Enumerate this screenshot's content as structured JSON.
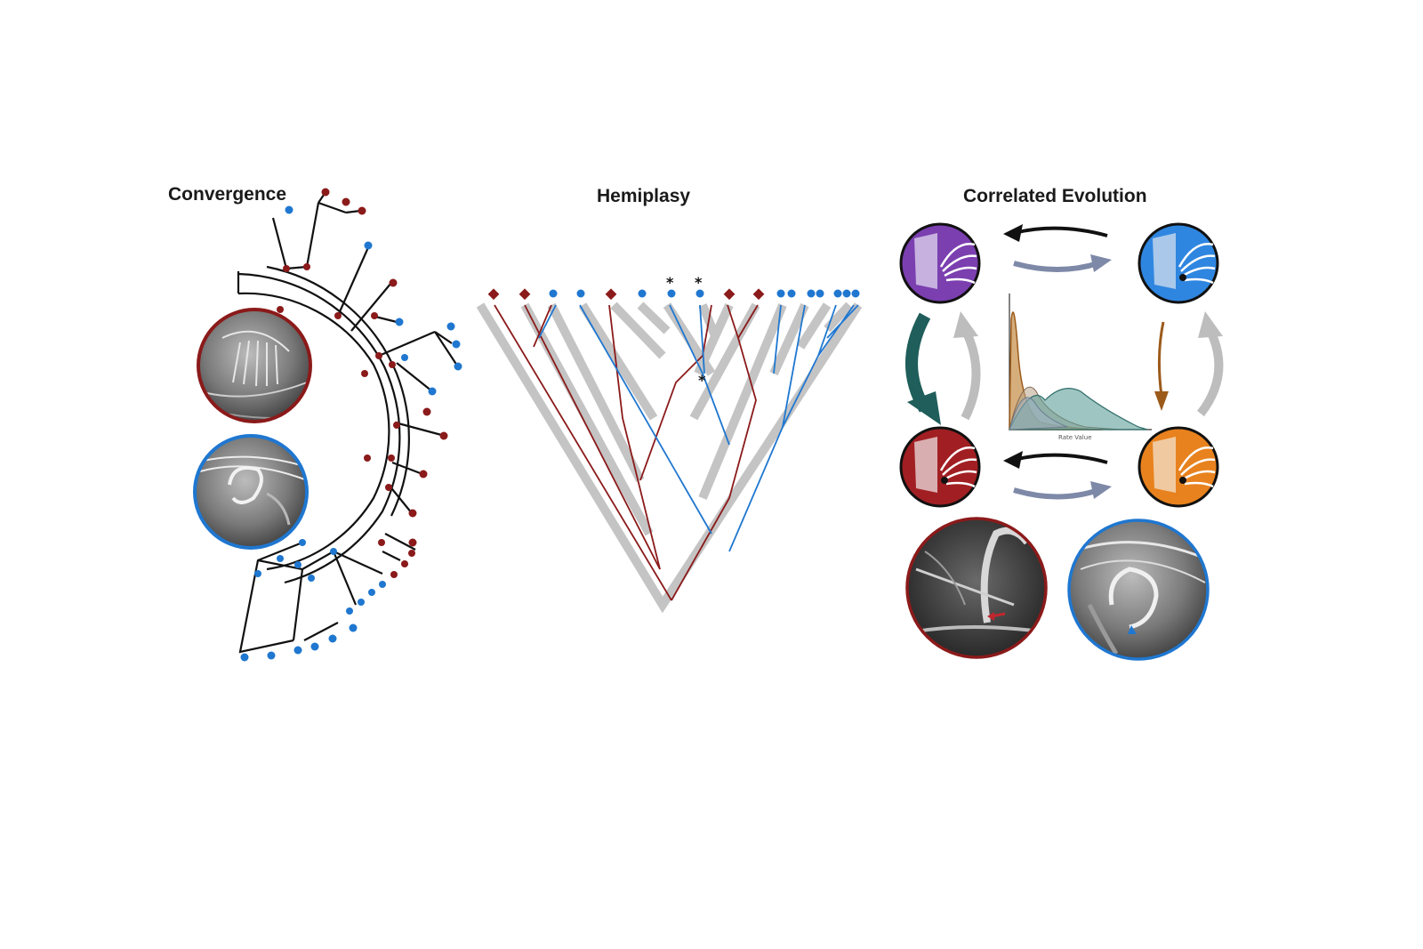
{
  "panels": {
    "convergence": {
      "title": "Convergence"
    },
    "hemiplasy": {
      "title": "Hemiplasy",
      "star_marker": "*"
    },
    "correlated": {
      "title": "Correlated Evolution",
      "density_plot": {
        "xlabel": "Rate Value"
      }
    }
  },
  "colors": {
    "state_red": "#8b1a1a",
    "state_blue": "#1f77d0",
    "gene_tree_gray": "#c4c4c4",
    "purple_state": "#7b3fb0",
    "blue_state": "#2f86e0",
    "red_state": "#a11f23",
    "orange_state": "#e8821e",
    "teal_arrow": "#1f5e5a",
    "brown_arrow": "#9b5a1a",
    "slate_arrow": "#7e89a8",
    "light_gray_arrow": "#bdbdbd"
  },
  "icons": [
    "phylogeny-tree",
    "sem-micrograph",
    "state-circle",
    "transition-arrow",
    "density-plot"
  ]
}
